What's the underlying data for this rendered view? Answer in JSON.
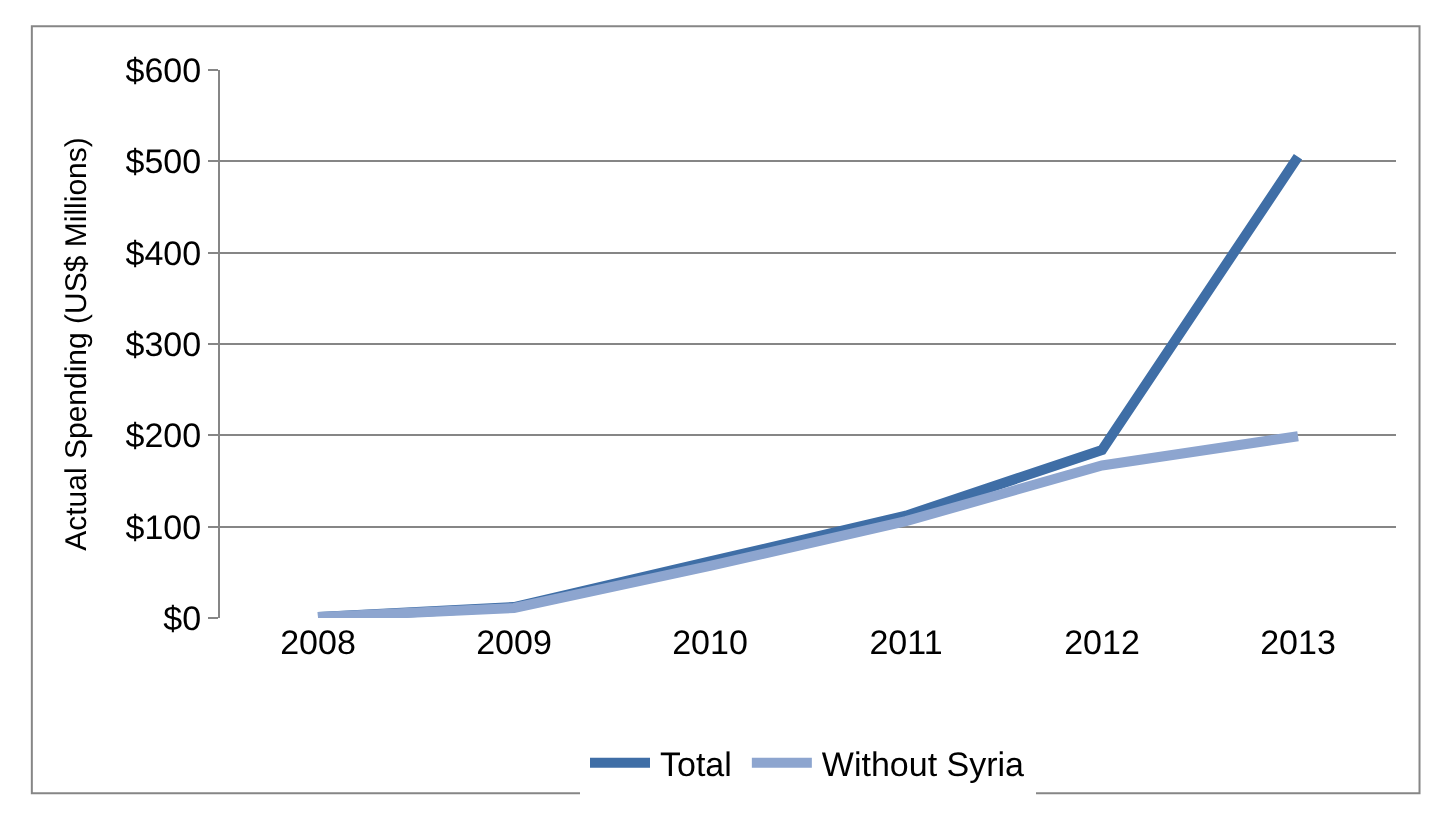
{
  "chart_data": {
    "type": "line",
    "ylabel": "Actual Spending (US$ Millions)",
    "categories": [
      "2008",
      "2009",
      "2010",
      "2011",
      "2012",
      "2013"
    ],
    "series": [
      {
        "name": "Total",
        "color": "#3f6ea6",
        "values": [
          1,
          12,
          62,
          112,
          184,
          505
        ]
      },
      {
        "name": "Without Syria",
        "color": "#8da5cf",
        "values": [
          1,
          11,
          57,
          106,
          167,
          199
        ]
      }
    ],
    "ylim": [
      0,
      600
    ],
    "yticks": [
      {
        "value": 0,
        "label": "$0"
      },
      {
        "value": 100,
        "label": "$100"
      },
      {
        "value": 200,
        "label": "$200"
      },
      {
        "value": 300,
        "label": "$300"
      },
      {
        "value": 400,
        "label": "$400"
      },
      {
        "value": 500,
        "label": "$500"
      },
      {
        "value": 600,
        "label": "$600"
      }
    ],
    "grid": "y",
    "legend": "bottom",
    "marker": "none",
    "line_style": "solid"
  }
}
